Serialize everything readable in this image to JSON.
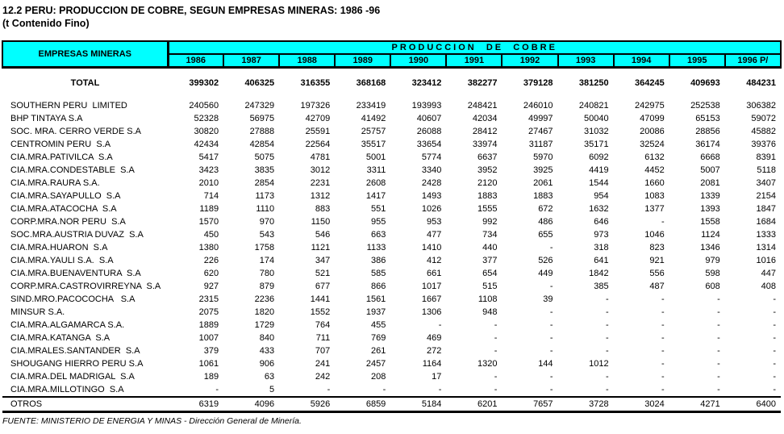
{
  "page": {
    "title": "12.2 PERU: PRODUCCION DE COBRE, SEGUN EMPRESAS MINERAS: 1986 -96",
    "subtitle": "(t Contenido Fino)"
  },
  "colors": {
    "header_bg": "#00FFFF",
    "border": "#000000",
    "text": "#000000",
    "background": "#FFFFFF"
  },
  "table": {
    "company_header": "EMPRESAS MINERAS",
    "span_header": "PRODUCCION  DE  COBRE",
    "years": [
      "1986",
      "1987",
      "1988",
      "1989",
      "1990",
      "1991",
      "1992",
      "1993",
      "1994",
      "1995",
      "1996 P/"
    ],
    "rows": [
      {
        "name": "TOTAL",
        "emphasis": true,
        "values": [
          "399302",
          "406325",
          "316355",
          "368168",
          "323412",
          "382277",
          "379128",
          "381250",
          "364245",
          "409693",
          "484231"
        ]
      },
      {
        "name": "SOUTHERN PERU  LIMITED",
        "values": [
          "240560",
          "247329",
          "197326",
          "233419",
          "193993",
          "248421",
          "246010",
          "240821",
          "242975",
          "252538",
          "306382"
        ]
      },
      {
        "name": "BHP TINTAYA S.A",
        "values": [
          "52328",
          "56975",
          "42709",
          "41492",
          "40607",
          "42034",
          "49997",
          "50040",
          "47099",
          "65153",
          "59072"
        ]
      },
      {
        "name": "SOC. MRA. CERRO VERDE S.A",
        "values": [
          "30820",
          "27888",
          "25591",
          "25757",
          "26088",
          "28412",
          "27467",
          "31032",
          "20086",
          "28856",
          "45882"
        ]
      },
      {
        "name": "CENTROMIN PERU  S.A",
        "values": [
          "42434",
          "42854",
          "22564",
          "35517",
          "33654",
          "33974",
          "31187",
          "35171",
          "32524",
          "36174",
          "39376"
        ]
      },
      {
        "name": "CIA.MRA.PATIVILCA  S.A",
        "values": [
          "5417",
          "5075",
          "4781",
          "5001",
          "5774",
          "6637",
          "5970",
          "6092",
          "6132",
          "6668",
          "8391"
        ]
      },
      {
        "name": "CIA.MRA.CONDESTABLE  S.A",
        "values": [
          "3423",
          "3835",
          "3012",
          "3311",
          "3340",
          "3952",
          "3925",
          "4419",
          "4452",
          "5007",
          "5118"
        ]
      },
      {
        "name": "CIA.MRA.RAURA S.A.",
        "values": [
          "2010",
          "2854",
          "2231",
          "2608",
          "2428",
          "2120",
          "2061",
          "1544",
          "1660",
          "2081",
          "3407"
        ]
      },
      {
        "name": "CIA.MRA.SAYAPULLO  S.A",
        "values": [
          "714",
          "1173",
          "1312",
          "1417",
          "1493",
          "1883",
          "1883",
          "954",
          "1083",
          "1339",
          "2154"
        ]
      },
      {
        "name": "CIA.MRA.ATACOCHA  S.A",
        "values": [
          "1189",
          "1110",
          "883",
          "551",
          "1026",
          "1555",
          "672",
          "1632",
          "1377",
          "1393",
          "1847"
        ]
      },
      {
        "name": "CORP.MRA.NOR PERU  S.A",
        "values": [
          "1570",
          "970",
          "1150",
          "955",
          "953",
          "992",
          "486",
          "646",
          "-",
          "1558",
          "1684"
        ]
      },
      {
        "name": "SOC.MRA.AUSTRIA DUVAZ  S.A",
        "values": [
          "450",
          "543",
          "546",
          "663",
          "477",
          "734",
          "655",
          "973",
          "1046",
          "1124",
          "1333"
        ]
      },
      {
        "name": "CIA.MRA.HUARON  S.A",
        "values": [
          "1380",
          "1758",
          "1121",
          "1133",
          "1410",
          "440",
          "-",
          "318",
          "823",
          "1346",
          "1314"
        ]
      },
      {
        "name": "CIA.MRA.YAULI S.A.  S.A",
        "values": [
          "226",
          "174",
          "347",
          "386",
          "412",
          "377",
          "526",
          "641",
          "921",
          "979",
          "1016"
        ]
      },
      {
        "name": "CIA.MRA.BUENAVENTURA  S.A",
        "values": [
          "620",
          "780",
          "521",
          "585",
          "661",
          "654",
          "449",
          "1842",
          "556",
          "598",
          "447"
        ]
      },
      {
        "name": "CORP.MRA.CASTROVIRREYNA  S.A",
        "values": [
          "927",
          "879",
          "677",
          "866",
          "1017",
          "515",
          "-",
          "385",
          "487",
          "608",
          "408"
        ]
      },
      {
        "name": "SIND.MRO.PACOCOCHA   S.A",
        "values": [
          "2315",
          "2236",
          "1441",
          "1561",
          "1667",
          "1108",
          "39",
          "-",
          "-",
          "-",
          "-"
        ]
      },
      {
        "name": "MINSUR S.A.",
        "values": [
          "2075",
          "1820",
          "1552",
          "1937",
          "1306",
          "948",
          "-",
          "-",
          "-",
          "-",
          "-"
        ]
      },
      {
        "name": "CIA.MRA.ALGAMARCA S.A.",
        "values": [
          "1889",
          "1729",
          "764",
          "455",
          "-",
          "-",
          "-",
          "-",
          "-",
          "-",
          "-"
        ]
      },
      {
        "name": "CIA.MRA.KATANGA  S.A",
        "values": [
          "1007",
          "840",
          "711",
          "769",
          "469",
          "-",
          "-",
          "-",
          "-",
          "-",
          "-"
        ]
      },
      {
        "name": "CIA.MRALES.SANTANDER  S.A",
        "values": [
          "379",
          "433",
          "707",
          "261",
          "272",
          "-",
          "-",
          "-",
          "-",
          "-",
          "-"
        ]
      },
      {
        "name": "SHOUGANG HIERRO PERU S.A",
        "values": [
          "1061",
          "906",
          "241",
          "2457",
          "1164",
          "1320",
          "144",
          "1012",
          "-",
          "-",
          "-"
        ]
      },
      {
        "name": "CIA.MRA.DEL MADRIGAL  S.A",
        "values": [
          "189",
          "63",
          "242",
          "208",
          "17",
          "-",
          "-",
          "-",
          "-",
          "-",
          "-"
        ]
      },
      {
        "name": "CIA.MRA.MILLOTINGO  S.A",
        "values": [
          "-",
          "5",
          "-",
          "-",
          "-",
          "-",
          "-",
          "-",
          "-",
          "-",
          "-"
        ]
      },
      {
        "name": "OTROS",
        "underline": true,
        "values": [
          "6319",
          "4096",
          "5926",
          "6859",
          "5184",
          "6201",
          "7657",
          "3728",
          "3024",
          "4271",
          "6400"
        ]
      }
    ]
  },
  "footer": {
    "source": "FUENTE: MINISTERIO DE ENERGIA Y MINAS - Dirección General de Minería."
  }
}
